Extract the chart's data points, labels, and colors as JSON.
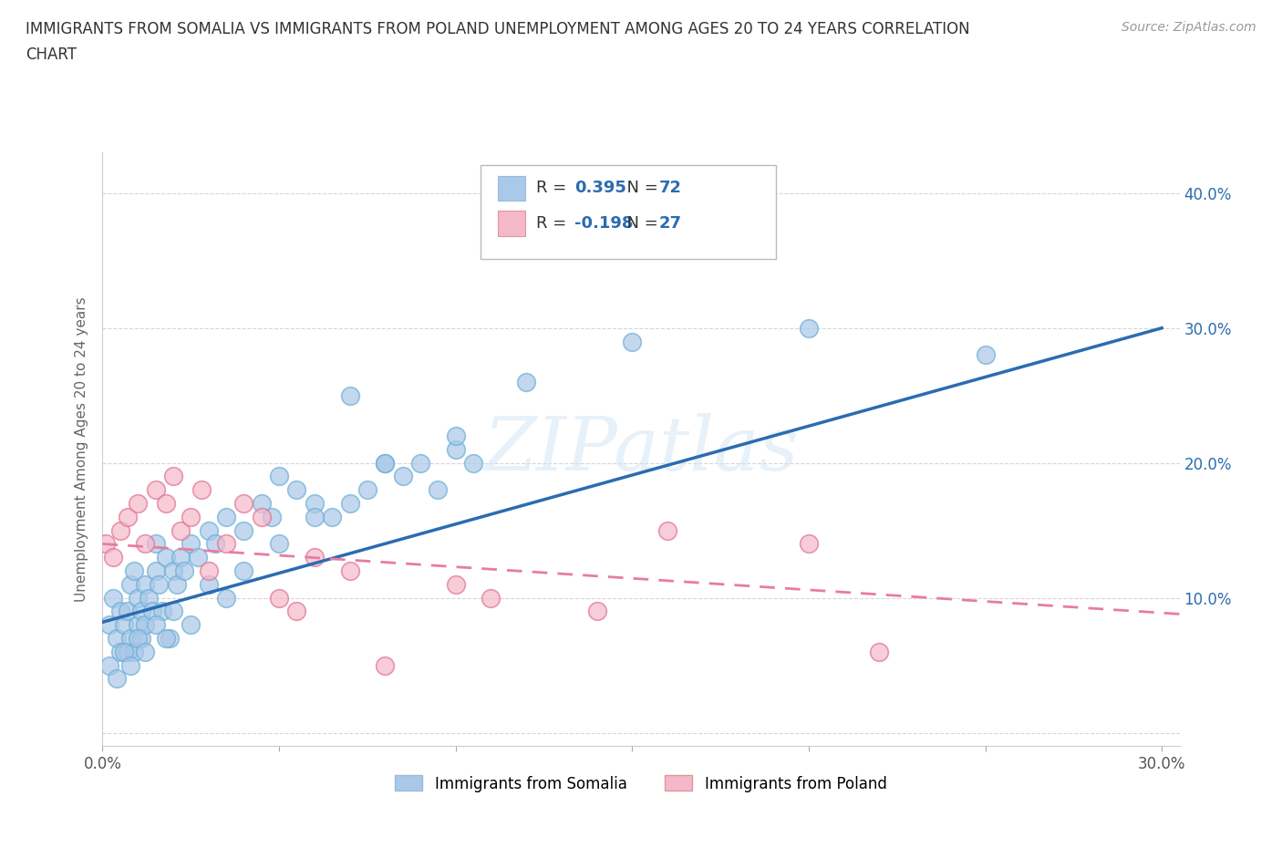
{
  "title_line1": "IMMIGRANTS FROM SOMALIA VS IMMIGRANTS FROM POLAND UNEMPLOYMENT AMONG AGES 20 TO 24 YEARS CORRELATION",
  "title_line2": "CHART",
  "source_text": "Source: ZipAtlas.com",
  "ylabel": "Unemployment Among Ages 20 to 24 years",
  "xlim": [
    0.0,
    0.305
  ],
  "ylim": [
    -0.01,
    0.43
  ],
  "somalia_color": "#aac8e8",
  "poland_color": "#f5b8cb",
  "somalia_line_color": "#2b6cb0",
  "poland_line_color": "#e87ca0",
  "r_somalia": "0.395",
  "n_somalia": "72",
  "r_poland": "-0.198",
  "n_poland": "27",
  "watermark": "ZIPatlas",
  "legend_r_color": "#2b6cb0",
  "somalia_label": "Immigrants from Somalia",
  "poland_label": "Immigrants from Poland",
  "somalia_x": [
    0.002,
    0.003,
    0.004,
    0.005,
    0.005,
    0.006,
    0.007,
    0.007,
    0.008,
    0.008,
    0.009,
    0.009,
    0.01,
    0.01,
    0.011,
    0.011,
    0.012,
    0.012,
    0.013,
    0.014,
    0.015,
    0.015,
    0.016,
    0.017,
    0.018,
    0.019,
    0.02,
    0.021,
    0.022,
    0.023,
    0.025,
    0.027,
    0.03,
    0.032,
    0.035,
    0.04,
    0.045,
    0.048,
    0.05,
    0.055,
    0.06,
    0.065,
    0.07,
    0.075,
    0.08,
    0.085,
    0.09,
    0.095,
    0.1,
    0.105,
    0.002,
    0.004,
    0.006,
    0.008,
    0.01,
    0.012,
    0.015,
    0.018,
    0.02,
    0.025,
    0.03,
    0.035,
    0.04,
    0.05,
    0.06,
    0.07,
    0.08,
    0.1,
    0.12,
    0.15,
    0.2,
    0.25
  ],
  "somalia_y": [
    0.08,
    0.1,
    0.07,
    0.09,
    0.06,
    0.08,
    0.06,
    0.09,
    0.07,
    0.11,
    0.12,
    0.06,
    0.1,
    0.08,
    0.09,
    0.07,
    0.11,
    0.08,
    0.1,
    0.09,
    0.12,
    0.14,
    0.11,
    0.09,
    0.13,
    0.07,
    0.12,
    0.11,
    0.13,
    0.12,
    0.14,
    0.13,
    0.15,
    0.14,
    0.16,
    0.15,
    0.17,
    0.16,
    0.19,
    0.18,
    0.17,
    0.16,
    0.25,
    0.18,
    0.2,
    0.19,
    0.2,
    0.18,
    0.21,
    0.2,
    0.05,
    0.04,
    0.06,
    0.05,
    0.07,
    0.06,
    0.08,
    0.07,
    0.09,
    0.08,
    0.11,
    0.1,
    0.12,
    0.14,
    0.16,
    0.17,
    0.2,
    0.22,
    0.26,
    0.29,
    0.3,
    0.28
  ],
  "poland_x": [
    0.001,
    0.003,
    0.005,
    0.007,
    0.01,
    0.012,
    0.015,
    0.018,
    0.02,
    0.022,
    0.025,
    0.028,
    0.03,
    0.035,
    0.04,
    0.045,
    0.05,
    0.055,
    0.06,
    0.07,
    0.08,
    0.1,
    0.11,
    0.14,
    0.16,
    0.2,
    0.22
  ],
  "poland_y": [
    0.14,
    0.13,
    0.15,
    0.16,
    0.17,
    0.14,
    0.18,
    0.17,
    0.19,
    0.15,
    0.16,
    0.18,
    0.12,
    0.14,
    0.17,
    0.16,
    0.1,
    0.09,
    0.13,
    0.12,
    0.05,
    0.11,
    0.1,
    0.09,
    0.15,
    0.14,
    0.06
  ]
}
